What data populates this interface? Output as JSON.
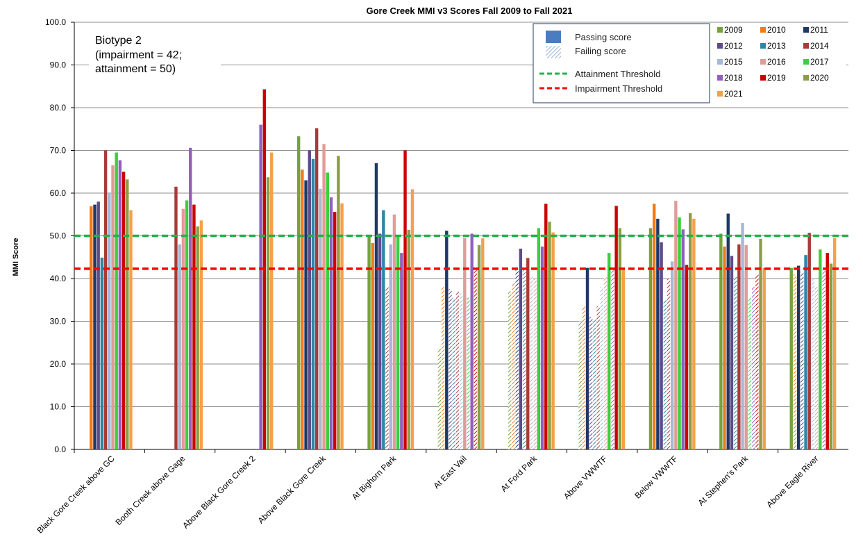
{
  "chart_data": {
    "type": "bar",
    "title": "Gore Creek MMI v3 Scores Fall 2009 to Fall 2021",
    "ylabel": "MMI Score",
    "xlabel": "",
    "ylim": [
      0,
      100
    ],
    "yticks": [
      "0.0",
      "10.0",
      "20.0",
      "30.0",
      "40.0",
      "50.0",
      "60.0",
      "70.0",
      "80.0",
      "90.0",
      "100.0"
    ],
    "grid": true,
    "annotation": [
      "Biotype 2",
      "(impairment = 42;",
      "attainment = 50)"
    ],
    "thresholds": [
      {
        "name": "Attainment Threshold",
        "value": 50,
        "color": "#22b14c"
      },
      {
        "name": "Impairment Threshold",
        "value": 42.3,
        "color": "#ff0000"
      }
    ],
    "legend_fill": [
      {
        "label": "Passing score"
      },
      {
        "label": "Failing score"
      }
    ],
    "legend_position": "top-right",
    "categories": [
      "Black Gore Creek above GC",
      "Booth Creek above Gage",
      "Above Black Gore Creek 2",
      "Above Black Gore Creek",
      "At Bighorn Park",
      "At East Vail",
      "At Ford Park",
      "Above VWWTF",
      "Below VWWTF",
      "At Stephen's Park",
      "Above Eagle River"
    ],
    "series": [
      {
        "name": "2009",
        "color": "#77a13a",
        "values": [
          null,
          null,
          null,
          73.3,
          49.8,
          23.5,
          37.0,
          30.0,
          51.8,
          50.5,
          42.5
        ]
      },
      {
        "name": "2010",
        "color": "#f07a1a",
        "values": [
          56.9,
          null,
          null,
          65.5,
          48.3,
          38.0,
          39.0,
          33.5,
          57.5,
          47.5,
          41.0
        ]
      },
      {
        "name": "2011",
        "color": "#1f3864",
        "values": [
          57.3,
          null,
          null,
          63.0,
          67.0,
          51.2,
          42.0,
          42.5,
          54.0,
          55.2,
          43.0
        ]
      },
      {
        "name": "2012",
        "color": "#5e4b8b",
        "values": [
          58.0,
          null,
          null,
          70.0,
          50.5,
          37.5,
          47.0,
          31.0,
          48.5,
          45.3,
          41.5
        ]
      },
      {
        "name": "2013",
        "color": "#2e86a6",
        "values": [
          44.9,
          null,
          null,
          68.0,
          56.0,
          35.5,
          42.0,
          30.5,
          35.0,
          40.5,
          45.5
        ]
      },
      {
        "name": "2014",
        "color": "#a83a38",
        "values": [
          70.0,
          61.5,
          null,
          75.2,
          38.0,
          37.0,
          44.8,
          33.5,
          40.0,
          48.0,
          50.7
        ]
      },
      {
        "name": "2015",
        "color": "#a6b8d6",
        "values": [
          60.0,
          48.0,
          null,
          61.0,
          48.0,
          36.5,
          40.5,
          38.0,
          44.0,
          53.0,
          40.0
        ]
      },
      {
        "name": "2016",
        "color": "#e39a9a",
        "values": [
          66.5,
          56.3,
          null,
          71.5,
          55.0,
          49.5,
          40.0,
          40.5,
          58.2,
          47.8,
          38.0
        ]
      },
      {
        "name": "2017",
        "color": "#3ccf3c",
        "values": [
          69.5,
          58.3,
          null,
          64.8,
          50.0,
          35.5,
          51.8,
          46.0,
          54.3,
          35.5,
          46.8
        ]
      },
      {
        "name": "2018",
        "color": "#9060c0",
        "values": [
          67.7,
          70.6,
          76.0,
          59.0,
          46.0,
          50.5,
          47.5,
          42.0,
          51.5,
          38.0,
          42.0
        ]
      },
      {
        "name": "2019",
        "color": "#cc0000",
        "values": [
          65.0,
          57.3,
          84.3,
          55.6,
          70.0,
          42.0,
          57.5,
          57.0,
          43.2,
          41.0,
          46.0
        ]
      },
      {
        "name": "2020",
        "color": "#8b9e43",
        "values": [
          63.2,
          52.2,
          63.7,
          68.7,
          51.4,
          47.8,
          53.3,
          51.8,
          55.3,
          49.3,
          43.5
        ]
      },
      {
        "name": "2021",
        "color": "#f4a14a",
        "values": [
          56.0,
          53.6,
          69.5,
          57.6,
          60.9,
          49.4,
          50.8,
          42.5,
          54.0,
          42.5,
          49.5
        ]
      }
    ]
  }
}
